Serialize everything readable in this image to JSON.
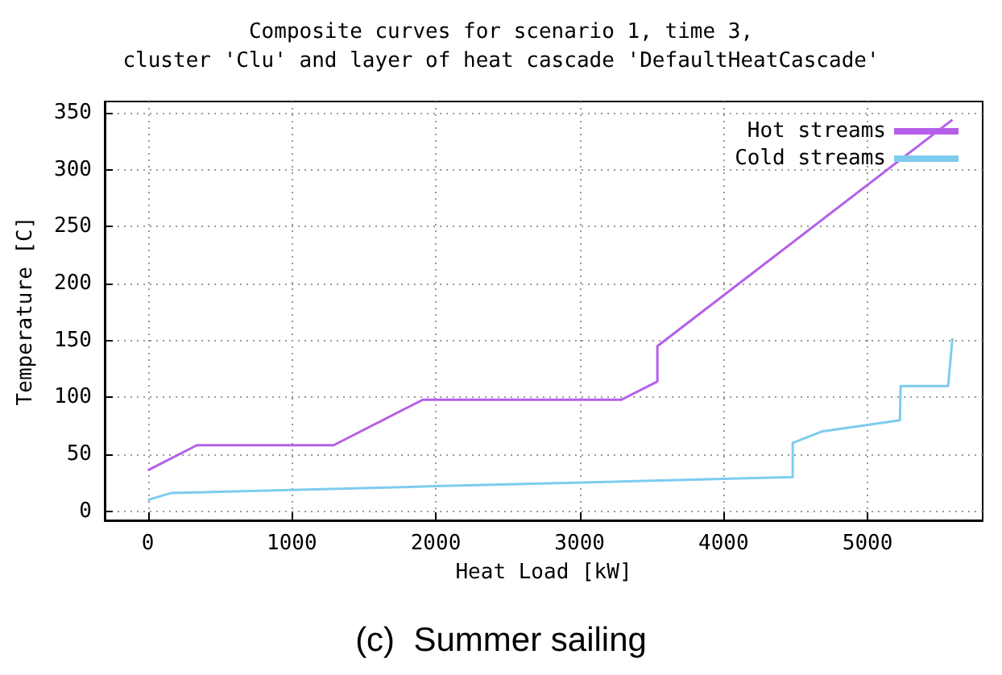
{
  "chart_data": {
    "type": "line",
    "title": "Composite curves for scenario 1, time 3,\ncluster 'Clu' and layer of heat cascade 'DefaultHeatCascade'",
    "xlabel": "Heat Load [kW]",
    "ylabel": "Temperature [C]",
    "series": [
      {
        "name": "Hot streams",
        "color": "#b55fe8",
        "x": [
          0,
          340,
          1290,
          1910,
          3290,
          3540,
          3540,
          5590
        ],
        "values": [
          36,
          58,
          58,
          98,
          98,
          114,
          145,
          344
        ]
      },
      {
        "name": "Cold streams",
        "color": "#7ecbf0",
        "x": [
          0,
          160,
          2000,
          4480,
          4480,
          4680,
          5225,
          5230,
          5560,
          5590
        ],
        "values": [
          10,
          16,
          22,
          30,
          60,
          70,
          80,
          110,
          110,
          152
        ]
      }
    ],
    "xlim": [
      -300,
      5800
    ],
    "xticks": [
      0,
      1000,
      2000,
      3000,
      4000,
      5000
    ],
    "ylim": [
      -8,
      360
    ],
    "yticks": [
      0,
      50,
      100,
      150,
      200,
      250,
      300,
      350
    ],
    "grid": true,
    "legend": "top right",
    "marker": "none",
    "line_style": "solid",
    "annotations": [
      "(c)  Summer sailing"
    ]
  }
}
